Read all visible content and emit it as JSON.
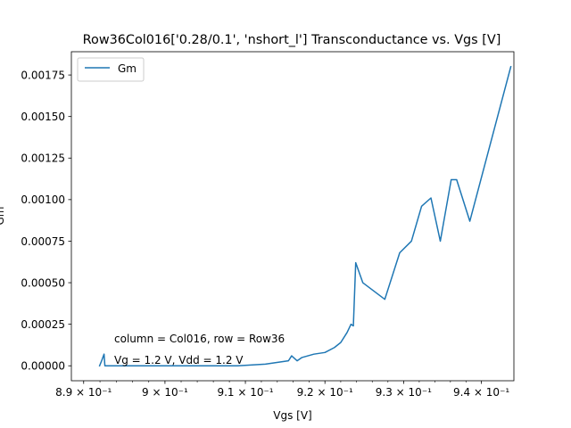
{
  "chart_data": {
    "type": "line",
    "title": "Row36Col016['0.28/0.1', 'nshort_l'] Transconductance vs. Vgs [V]",
    "xlabel": "Vgs [V]",
    "ylabel": "Gm",
    "xlim": [
      0.8885,
      0.9442
    ],
    "ylim": [
      -9e-05,
      0.00189
    ],
    "x_scale": "log",
    "grid": false,
    "legend_position": "upper left",
    "x_ticks": [
      {
        "value": 0.89,
        "label": "8.9 × 10⁻¹"
      },
      {
        "value": 0.9,
        "label": "9 × 10⁻¹"
      },
      {
        "value": 0.91,
        "label": "9.1 × 10⁻¹"
      },
      {
        "value": 0.92,
        "label": "9.2 × 10⁻¹"
      },
      {
        "value": 0.93,
        "label": "9.3 × 10⁻¹"
      },
      {
        "value": 0.94,
        "label": "9.4 × 10⁻¹"
      }
    ],
    "y_ticks": [
      {
        "value": 0.0,
        "label": "0.00000"
      },
      {
        "value": 0.00025,
        "label": "0.00025"
      },
      {
        "value": 0.0005,
        "label": "0.00050"
      },
      {
        "value": 0.00075,
        "label": "0.00075"
      },
      {
        "value": 0.001,
        "label": "0.00100"
      },
      {
        "value": 0.00125,
        "label": "0.00125"
      },
      {
        "value": 0.0015,
        "label": "0.00150"
      },
      {
        "value": 0.00175,
        "label": "0.00175"
      }
    ],
    "series": [
      {
        "name": "Gm",
        "color": "#1f77b4",
        "x": [
          0.89195,
          0.8922,
          0.8925,
          0.8926,
          0.895,
          0.905,
          0.909,
          0.9125,
          0.9154,
          0.9158,
          0.9165,
          0.9171,
          0.9186,
          0.92,
          0.9212,
          0.922,
          0.9228,
          0.9233,
          0.9236,
          0.9239,
          0.9248,
          0.9276,
          0.9295,
          0.931,
          0.9323,
          0.9335,
          0.9347,
          0.9361,
          0.9368,
          0.9385,
          0.9438
        ],
        "y": [
          0.0,
          3e-05,
          7e-05,
          0.0,
          0.0,
          0.0,
          0.0,
          1e-05,
          3e-05,
          6e-05,
          3e-05,
          5e-05,
          7e-05,
          8e-05,
          0.00011,
          0.00014,
          0.0002,
          0.00025,
          0.00024,
          0.00062,
          0.0005,
          0.0004,
          0.00068,
          0.00075,
          0.00096,
          0.00101,
          0.00075,
          0.00112,
          0.00112,
          0.00087,
          0.0018
        ]
      }
    ],
    "annotations": [
      "column = Col016, row = Row36",
      "Vg = 1.2 V, Vdd = 1.2 V"
    ]
  }
}
